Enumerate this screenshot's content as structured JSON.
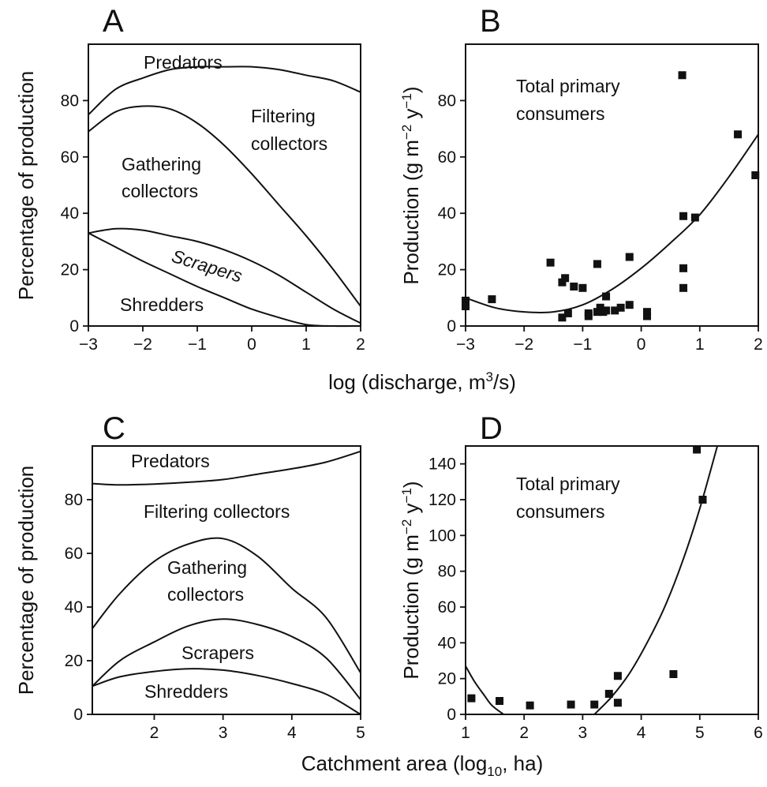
{
  "figure": {
    "shared_xlabel_top": "log (discharge, m",
    "shared_xlabel_top_sup": "3",
    "shared_xlabel_top_end": "/s)",
    "shared_xlabel_bottom": "Catchment area (log",
    "shared_xlabel_bottom_sub": "10",
    "shared_xlabel_bottom_end": ", ha)",
    "ylabel_percentage": "Percentage of production",
    "ylabel_production": "Production (g m",
    "ylabel_production_sup1": "−2",
    "ylabel_production_mid": " y",
    "ylabel_production_sup2": "−1",
    "ylabel_production_end": ")"
  },
  "chart_data": [
    {
      "panel": "A",
      "type": "area",
      "xlim": [
        -3,
        2
      ],
      "ylim": [
        0,
        100
      ],
      "x_ticks": [
        -3,
        -2,
        -1,
        0,
        1,
        2
      ],
      "x_tick_labels": [
        "−3",
        "−2",
        "−1",
        "0",
        "1",
        "2"
      ],
      "y_ticks": [
        0,
        20,
        40,
        60,
        80
      ],
      "y_tick_labels": [
        "0",
        "20",
        "40",
        "60",
        "80"
      ],
      "x": [
        -3,
        -2.5,
        -2,
        -1.5,
        -1,
        -0.5,
        0,
        0.5,
        1,
        1.5,
        2
      ],
      "boundaries": [
        {
          "name": "upper edge of Shredders",
          "values": [
            33,
            28,
            23,
            18.5,
            14,
            10,
            6,
            3,
            0.5,
            0,
            0
          ]
        },
        {
          "name": "upper edge of Scrapers",
          "values": [
            33,
            34.5,
            34,
            32,
            30,
            27,
            23,
            18,
            12,
            6,
            1
          ]
        },
        {
          "name": "upper edge of Gathering collectors",
          "values": [
            69,
            76,
            78,
            77,
            72,
            64,
            54,
            43,
            32,
            20,
            7
          ]
        },
        {
          "name": "upper edge of Filtering collectors",
          "values": [
            75,
            84,
            88,
            91,
            92,
            92,
            92,
            91,
            89,
            87,
            83
          ]
        }
      ],
      "labels": [
        "Predators",
        "Filtering",
        "collectors",
        "Gathering",
        "collectors",
        "Scrapers",
        "Shredders"
      ]
    },
    {
      "panel": "B",
      "type": "scatter",
      "xlim": [
        -3,
        2
      ],
      "ylim": [
        0,
        100
      ],
      "x_ticks": [
        -3,
        -2,
        -1,
        0,
        1,
        2
      ],
      "x_tick_labels": [
        "−3",
        "−2",
        "−1",
        "0",
        "1",
        "2"
      ],
      "y_ticks": [
        0,
        20,
        40,
        60,
        80
      ],
      "y_tick_labels": [
        "0",
        "20",
        "40",
        "60",
        "80"
      ],
      "series_label": [
        "Total primary",
        "consumers"
      ],
      "points": [
        [
          -3,
          9
        ],
        [
          -3,
          7
        ],
        [
          -2.55,
          9.5
        ],
        [
          -1.55,
          22.5
        ],
        [
          -1.35,
          15.5
        ],
        [
          -1.35,
          3
        ],
        [
          -1.25,
          4.5
        ],
        [
          -1.3,
          17
        ],
        [
          -1.15,
          14
        ],
        [
          -1.0,
          13.5
        ],
        [
          -0.9,
          4.5
        ],
        [
          -0.9,
          3.5
        ],
        [
          -0.75,
          22
        ],
        [
          -0.75,
          5
        ],
        [
          -0.7,
          6.5
        ],
        [
          -0.65,
          5
        ],
        [
          -0.6,
          10.5
        ],
        [
          -0.6,
          5.5
        ],
        [
          -0.45,
          5.5
        ],
        [
          -0.35,
          6.5
        ],
        [
          -0.2,
          24.5
        ],
        [
          -0.2,
          7.5
        ],
        [
          0.1,
          5
        ],
        [
          0.1,
          3.5
        ],
        [
          0.7,
          89
        ],
        [
          0.72,
          39
        ],
        [
          0.72,
          20.5
        ],
        [
          0.72,
          13.5
        ],
        [
          0.92,
          38.5
        ],
        [
          1.65,
          68
        ],
        [
          1.95,
          53.5
        ]
      ],
      "fit_x": [
        -3,
        -2.5,
        -2,
        -1.5,
        -1,
        -0.5,
        0,
        0.5,
        1,
        1.5,
        2
      ],
      "fit_y": [
        10,
        6.5,
        5,
        5,
        7.5,
        13,
        20.5,
        29.5,
        39.5,
        53,
        68
      ]
    },
    {
      "panel": "C",
      "type": "area",
      "xlim": [
        1.1,
        5
      ],
      "ylim": [
        0,
        100
      ],
      "x_ticks": [
        2,
        3,
        4,
        5
      ],
      "x_tick_labels": [
        "2",
        "3",
        "4",
        "5"
      ],
      "y_ticks": [
        0,
        20,
        40,
        60,
        80
      ],
      "y_tick_labels": [
        "0",
        "20",
        "40",
        "60",
        "80"
      ],
      "x": [
        1.1,
        1.5,
        2,
        2.5,
        3,
        3.5,
        4,
        4.5,
        5
      ],
      "boundaries": [
        {
          "name": "upper edge of Shredders",
          "values": [
            10.5,
            14,
            16,
            17,
            16.5,
            14.5,
            11.5,
            7.5,
            0
          ]
        },
        {
          "name": "upper edge of Scrapers",
          "values": [
            10.5,
            20,
            27,
            33,
            35.5,
            33.5,
            29,
            21,
            5.5
          ]
        },
        {
          "name": "upper edge of Gathering collectors",
          "values": [
            32,
            45,
            57,
            63.5,
            65.5,
            59,
            47,
            36,
            15.5
          ]
        },
        {
          "name": "upper edge of Filtering collectors",
          "values": [
            86,
            85.5,
            85.8,
            86.5,
            87.5,
            89.5,
            91.5,
            94,
            98
          ]
        }
      ],
      "labels": [
        "Predators",
        "Filtering collectors",
        "Gathering",
        "collectors",
        "Scrapers",
        "Shredders"
      ]
    },
    {
      "panel": "D",
      "type": "scatter",
      "xlim": [
        1,
        6
      ],
      "ylim": [
        0,
        150
      ],
      "x_ticks": [
        1,
        2,
        3,
        4,
        5,
        6
      ],
      "x_tick_labels": [
        "1",
        "2",
        "3",
        "4",
        "5",
        "6"
      ],
      "y_ticks": [
        0,
        20,
        40,
        60,
        80,
        100,
        120,
        140
      ],
      "y_tick_labels": [
        "0",
        "20",
        "40",
        "60",
        "80",
        "100",
        "120",
        "140"
      ],
      "series_label": [
        "Total primary",
        "consumers"
      ],
      "points": [
        [
          1.1,
          9
        ],
        [
          1.58,
          7.5
        ],
        [
          2.1,
          5
        ],
        [
          2.8,
          5.5
        ],
        [
          3.2,
          5.5
        ],
        [
          3.45,
          11.5
        ],
        [
          3.6,
          21.5
        ],
        [
          3.6,
          6.5
        ],
        [
          4.55,
          22.5
        ],
        [
          4.95,
          148
        ],
        [
          5.05,
          120
        ]
      ],
      "fit_segments": [
        {
          "x": [
            1.0,
            1.15,
            1.3,
            1.45,
            1.65
          ],
          "y": [
            27,
            18.5,
            11.5,
            5,
            0
          ]
        },
        {
          "x": [
            3.2,
            3.5,
            3.8,
            4.1,
            4.4,
            4.7,
            5.0,
            5.3
          ],
          "y": [
            0,
            10,
            23,
            40,
            60,
            85,
            115,
            150
          ]
        }
      ]
    }
  ]
}
